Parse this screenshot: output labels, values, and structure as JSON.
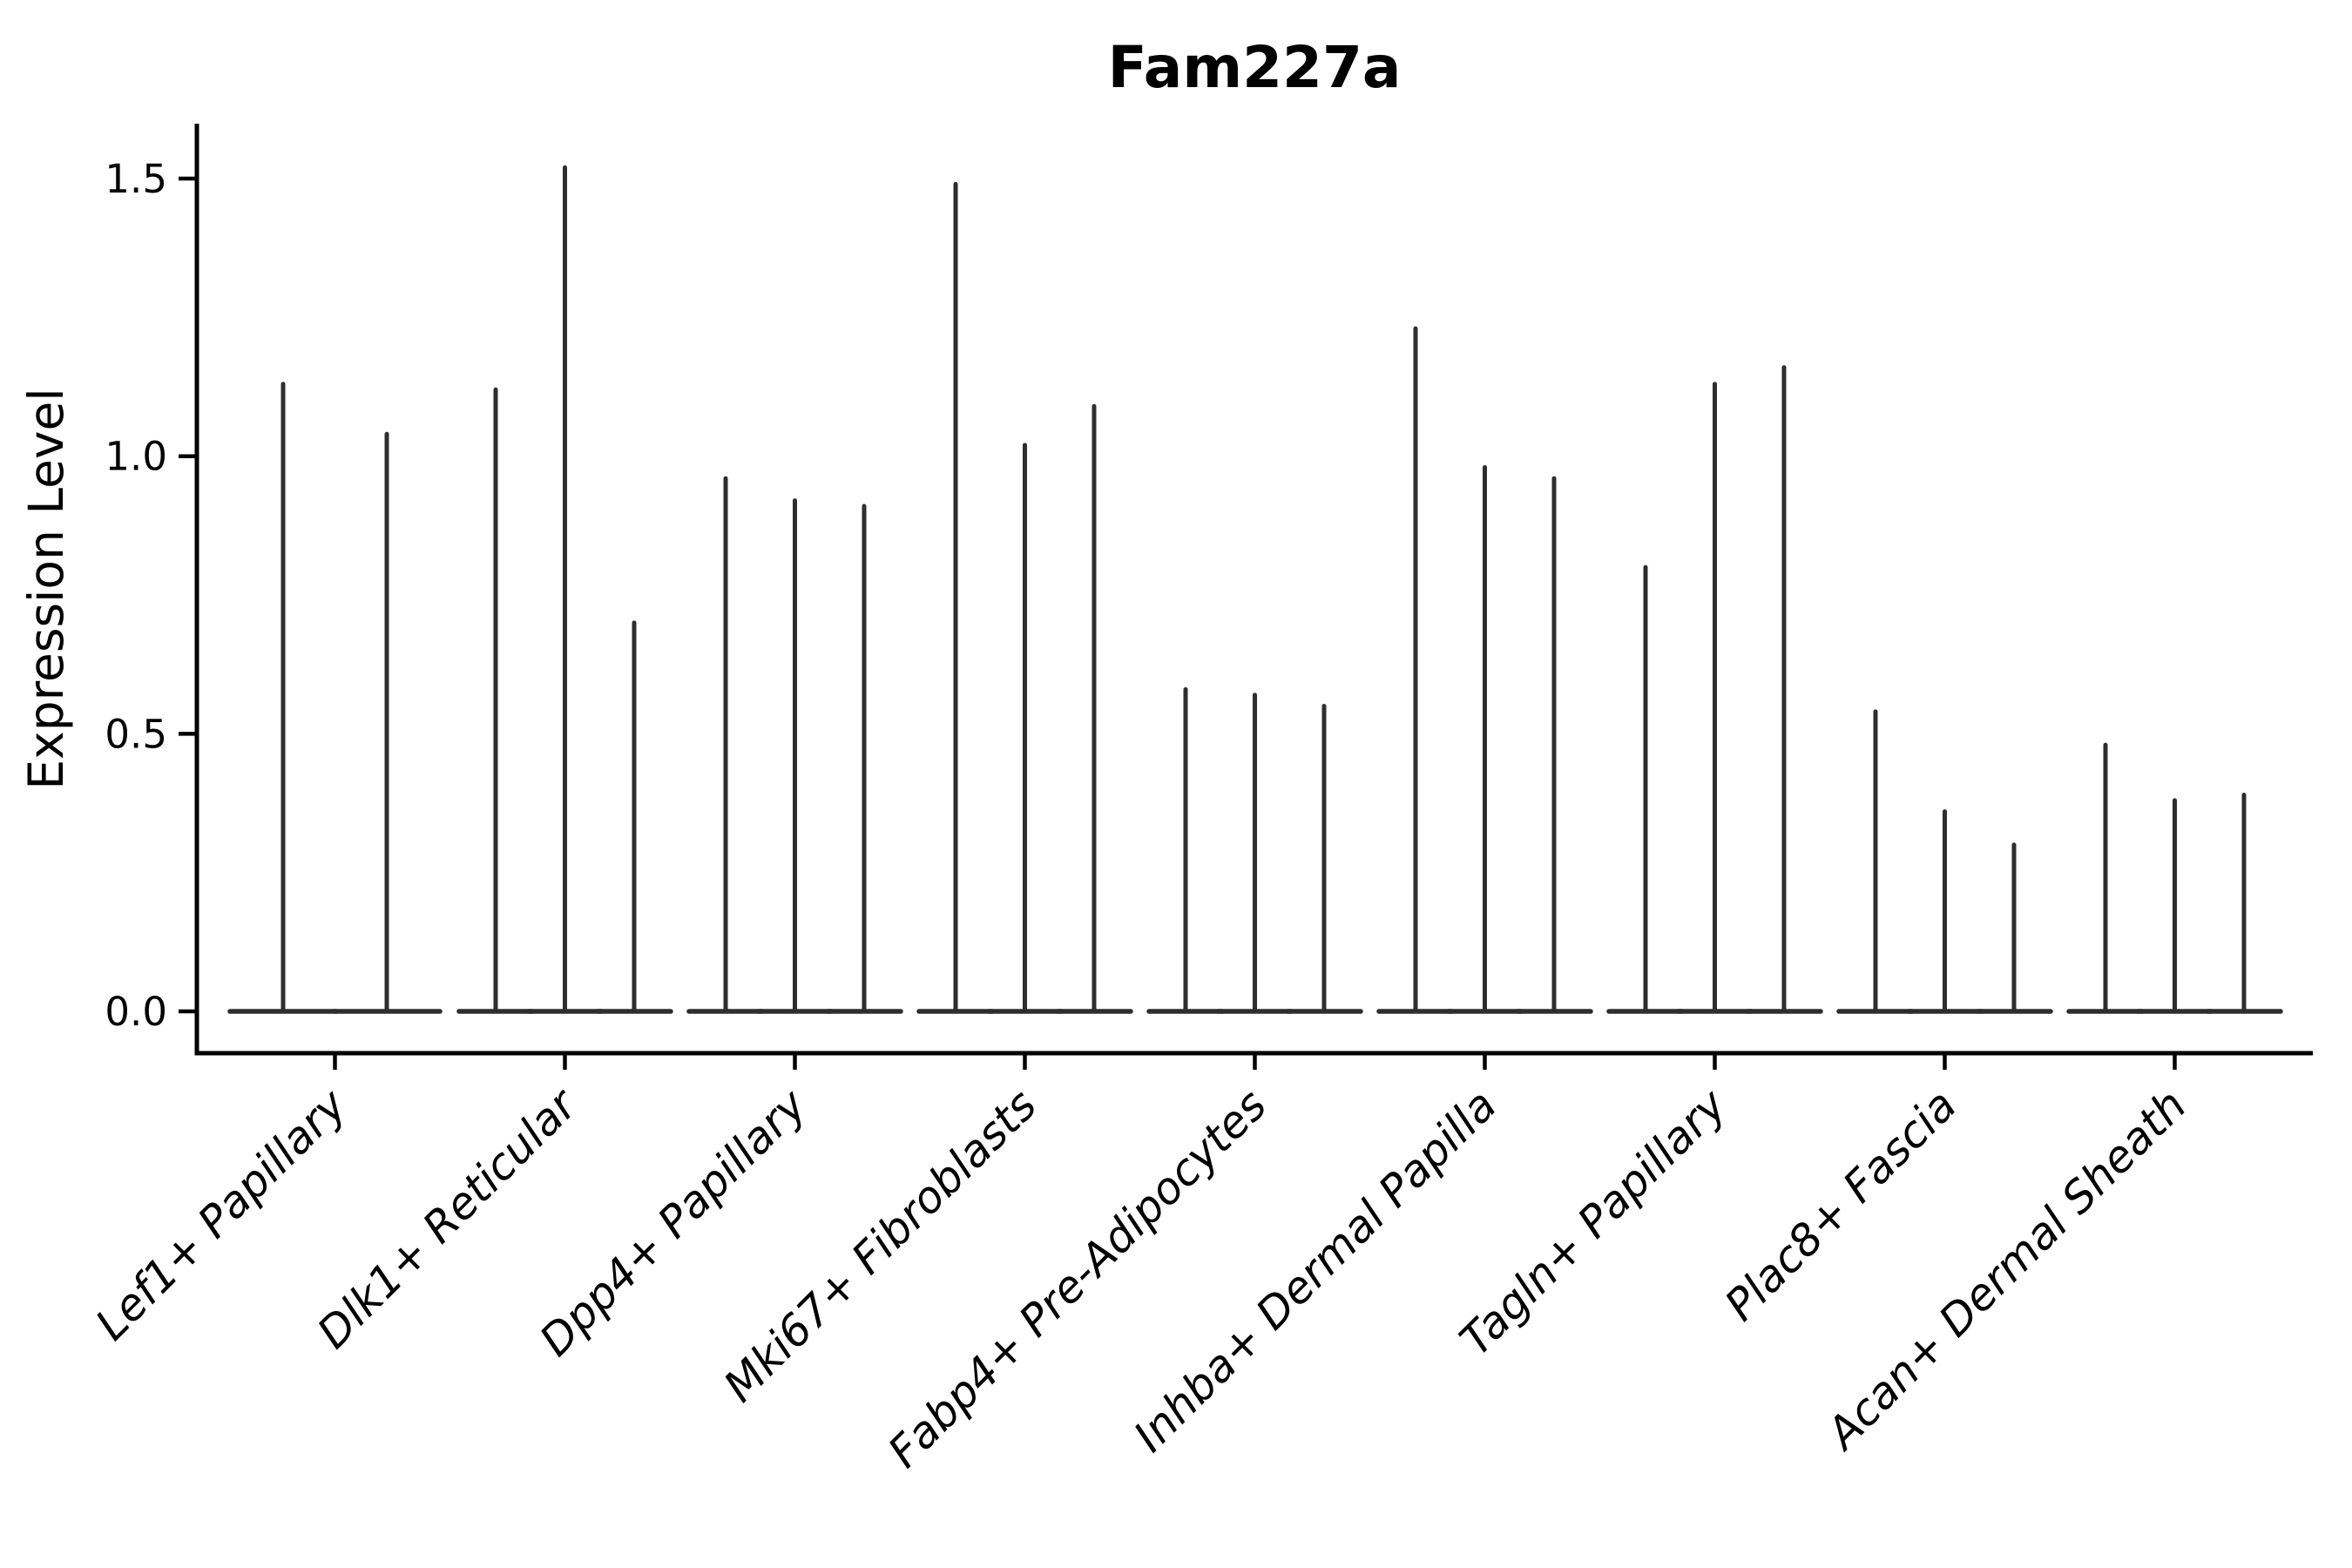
{
  "figure": {
    "title": "Fam227a",
    "background_color": "#ffffff"
  },
  "chart_data": {
    "type": "violin",
    "title": "Fam227a",
    "xlabel": "",
    "ylabel": "Expression Level",
    "ylim": [
      -0.08,
      1.6
    ],
    "ytick_labels": [
      "0.0",
      "0.5",
      "1.0",
      "1.5"
    ],
    "ytick_values": [
      0.0,
      0.5,
      1.0,
      1.5
    ],
    "grid": false,
    "legend": false,
    "line_color": "#2e2e2e",
    "axis_color": "#000000",
    "categories": [
      "Lef1+ Papillary",
      "Dlk1+ Reticular",
      "Dpp4+ Papillary",
      "Mki67+ Fibroblasts",
      "Fabp4+ Pre-Adipocytes",
      "Inhba+ Dermal Papilla",
      "Tagln+ Papillary",
      "Plac8+ Fascia",
      "Acan+ Dermal Sheath"
    ],
    "groups": [
      {
        "label": "Lef1+ Papillary",
        "violin_max_values": [
          1.13,
          1.04
        ]
      },
      {
        "label": "Dlk1+ Reticular",
        "violin_max_values": [
          1.12,
          1.52,
          0.7
        ]
      },
      {
        "label": "Dpp4+ Papillary",
        "violin_max_values": [
          0.96,
          0.92,
          0.91
        ]
      },
      {
        "label": "Mki67+ Fibroblasts",
        "violin_max_values": [
          1.49,
          1.02,
          1.09
        ]
      },
      {
        "label": "Fabp4+ Pre-Adipocytes",
        "violin_max_values": [
          0.58,
          0.57,
          0.55
        ]
      },
      {
        "label": "Inhba+ Dermal Papilla",
        "violin_max_values": [
          1.23,
          0.98,
          0.96
        ]
      },
      {
        "label": "Tagln+ Papillary",
        "violin_max_values": [
          0.8,
          1.13,
          1.16
        ]
      },
      {
        "label": "Plac8+ Fascia",
        "violin_max_values": [
          0.54,
          0.36,
          0.3
        ]
      },
      {
        "label": "Acan+ Dermal Sheath",
        "violin_max_values": [
          0.48,
          0.38,
          0.39
        ]
      }
    ],
    "baseline_value": 0.0,
    "description": "Violin plot of expression level per fibroblast cluster; each cluster shows 2-3 extremely thin violins collapsed at 0 with a single spike to the maximum value."
  }
}
